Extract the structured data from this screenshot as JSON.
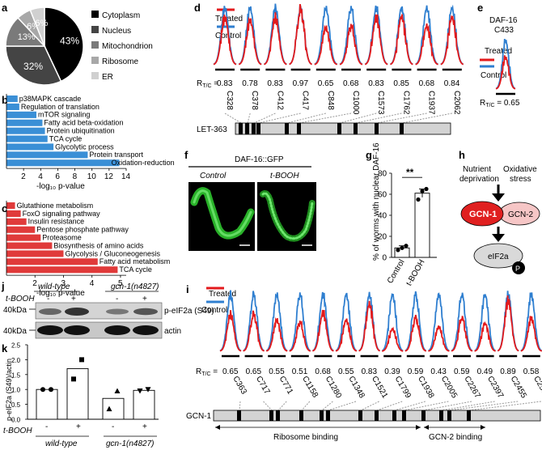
{
  "colors": {
    "treated": "#e31a1c",
    "control": "#2f7fd0",
    "bar_b": "#3a8fd6",
    "bar_c": "#e03a3a",
    "gcn1": "#e02020",
    "gcn2": "#f6c6c6",
    "eif2a": "#d9d9d9"
  },
  "panel_labels": {
    "a": "a",
    "b": "b",
    "c": "c",
    "d": "d",
    "e": "e",
    "f": "f",
    "g": "g",
    "h": "h",
    "i": "i",
    "j": "j",
    "k": "k"
  },
  "legend": {
    "treated": "Treated",
    "control": "Control"
  },
  "rtc_label": {
    "r": "R",
    "sub": "T/C",
    "eq": " = "
  },
  "pie": {
    "type": "pie",
    "labels": [
      "Cytoplasm",
      "Nucleus",
      "Mitochondrion",
      "Ribosome",
      "ER"
    ],
    "values": [
      43,
      32,
      13,
      6,
      6
    ],
    "slice_texts": [
      "43%",
      "32%",
      "13%",
      "6%",
      "6%"
    ],
    "colors": [
      "#000000",
      "#444444",
      "#7a7a7a",
      "#a8a8a8",
      "#d0d0d0"
    ]
  },
  "bar_b": {
    "type": "bar",
    "categories": [
      "p38MAPK cascade",
      "Regulation of translation",
      "mTOR signaling",
      "Fatty acid beta-oxidation",
      "Protein ubiquitination",
      "TCA cycle",
      "Glycolytic process",
      "Protein transport",
      "Oxidation-reduction"
    ],
    "values": [
      1.3,
      1.5,
      3.5,
      4.2,
      4.5,
      4.8,
      5.5,
      9.5,
      13.2
    ],
    "ticks": [
      "2",
      "4",
      "6",
      "8",
      "10",
      "12",
      "14"
    ],
    "xlim": [
      0,
      14
    ],
    "xlabel": "-log₁₀ p-value"
  },
  "bar_c": {
    "type": "bar",
    "categories": [
      "Glutathione metabolism",
      "FoxO signaling pathway",
      "Insulin resistance",
      "Pentose phosphate pathway",
      "Proteasome",
      "Biosynthesis of amino acids",
      "Glycolysis / Gluconeogenesis",
      "Fatty acid metabolism",
      "TCA cycle"
    ],
    "values": [
      1.3,
      1.5,
      1.7,
      2.0,
      2.2,
      2.6,
      3.0,
      4.2,
      4.9
    ],
    "ticks": [
      "2",
      "3",
      "4",
      "5"
    ],
    "xlim": [
      1,
      5.2
    ],
    "xlabel": "-log₁₀ p-value"
  },
  "panel_d": {
    "protein": "LET-363",
    "sites": [
      "C328",
      "C378",
      "C412",
      "C417",
      "C848",
      "C1000",
      "C1573",
      "C1762",
      "C1937",
      "C2062"
    ],
    "ratios": [
      "0.83",
      "0.78",
      "0.83",
      "0.97",
      "0.65",
      "0.68",
      "0.83",
      "0.85",
      "0.68",
      "0.84"
    ]
  },
  "panel_e": {
    "title_line1": "DAF-16",
    "title_line2": "C433",
    "ratio": "0.65"
  },
  "panel_f": {
    "title": "DAF-16::GFP",
    "control": "Control",
    "tbooh": "t-BOOH"
  },
  "panel_g": {
    "type": "bar",
    "categories": [
      "Control",
      "t-BOOH"
    ],
    "values": [
      9,
      61
    ],
    "errors": [
      2,
      4
    ],
    "points": [
      [
        7,
        9,
        11
      ],
      [
        55,
        63,
        65
      ]
    ],
    "ticks": [
      "0",
      "20",
      "40",
      "60",
      "80"
    ],
    "ylim": [
      0,
      80
    ],
    "ylabel": "% of worms with nuclear DAF-16",
    "sig": "**"
  },
  "panel_h": {
    "nutrient": "Nutrient",
    "deprivation": "deprivation",
    "oxidative": "Oxidative",
    "stress": "stress",
    "gcn1": "GCN-1",
    "gcn2": "GCN-2",
    "eif2a": "eIF2a",
    "p": "P"
  },
  "panel_i": {
    "protein": "GCN-1",
    "sites": [
      "C363",
      "C717",
      "C771",
      "C1158",
      "C1280",
      "C1348",
      "C1521",
      "C1799",
      "C1938",
      "C2005",
      "C2267",
      "C2397",
      "C2455",
      "C2580"
    ],
    "ratios": [
      "0.65",
      "0.65",
      "0.55",
      "0.51",
      "0.68",
      "0.55",
      "0.83",
      "0.39",
      "0.59",
      "0.43",
      "0.59",
      "0.49",
      "0.89",
      "0.58"
    ],
    "ribosome_binding": "Ribosome binding",
    "gcn2_binding": "GCN-2 binding"
  },
  "panel_j": {
    "tbooh": "t-BOOH",
    "signs": [
      "-",
      "+",
      "-",
      "+"
    ],
    "wildtype": "wild-type",
    "gcn1": "gcn-1(n4827)",
    "mw1": "40kDa",
    "mw2": "40kDa",
    "band1": "p-eIF2a (S49)",
    "band2": "actin"
  },
  "panel_k": {
    "type": "bar",
    "values": [
      1.0,
      1.7,
      0.7,
      0.97
    ],
    "points": [
      [
        1.0,
        1.0
      ],
      [
        1.35,
        2.0
      ],
      [
        0.35,
        0.95
      ],
      [
        0.95,
        1.0
      ]
    ],
    "ticks": [
      "0.0",
      "0.5",
      "1.0",
      "1.5",
      "2.0",
      "2.5"
    ],
    "ylim": [
      0,
      2.5
    ],
    "ylabel": "p-eIF2a (S49)/actin",
    "signs": [
      "-",
      "+",
      "-",
      "+"
    ],
    "tbooh": "t-BOOH",
    "wildtype": "wild-type",
    "gcn1": "gcn-1(n4827)"
  }
}
